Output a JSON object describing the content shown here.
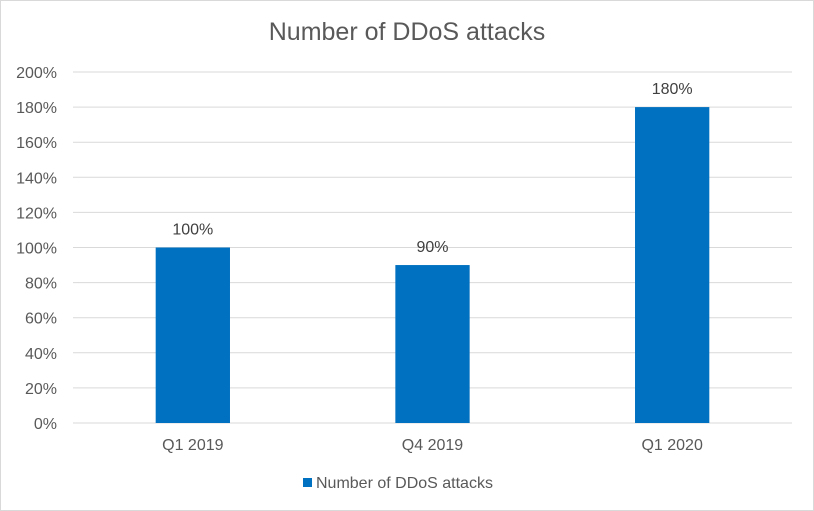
{
  "chart_data": {
    "type": "bar",
    "title": "Number of DDoS attacks",
    "categories": [
      "Q1 2019",
      "Q4 2019",
      "Q1 2020"
    ],
    "series": [
      {
        "name": "Number of DDoS attacks",
        "values": [
          100,
          90,
          180
        ],
        "color": "#0070c0"
      }
    ],
    "data_labels": [
      "100%",
      "90%",
      "180%"
    ],
    "y_ticks": [
      "0%",
      "20%",
      "40%",
      "60%",
      "80%",
      "100%",
      "120%",
      "140%",
      "160%",
      "180%",
      "200%"
    ],
    "ylim": [
      0,
      200
    ],
    "xlabel": "",
    "ylabel": "",
    "grid": true,
    "legend_position": "bottom",
    "colors": {
      "bar": "#0070c0",
      "grid": "#d9d9d9",
      "text": "#595959"
    }
  }
}
